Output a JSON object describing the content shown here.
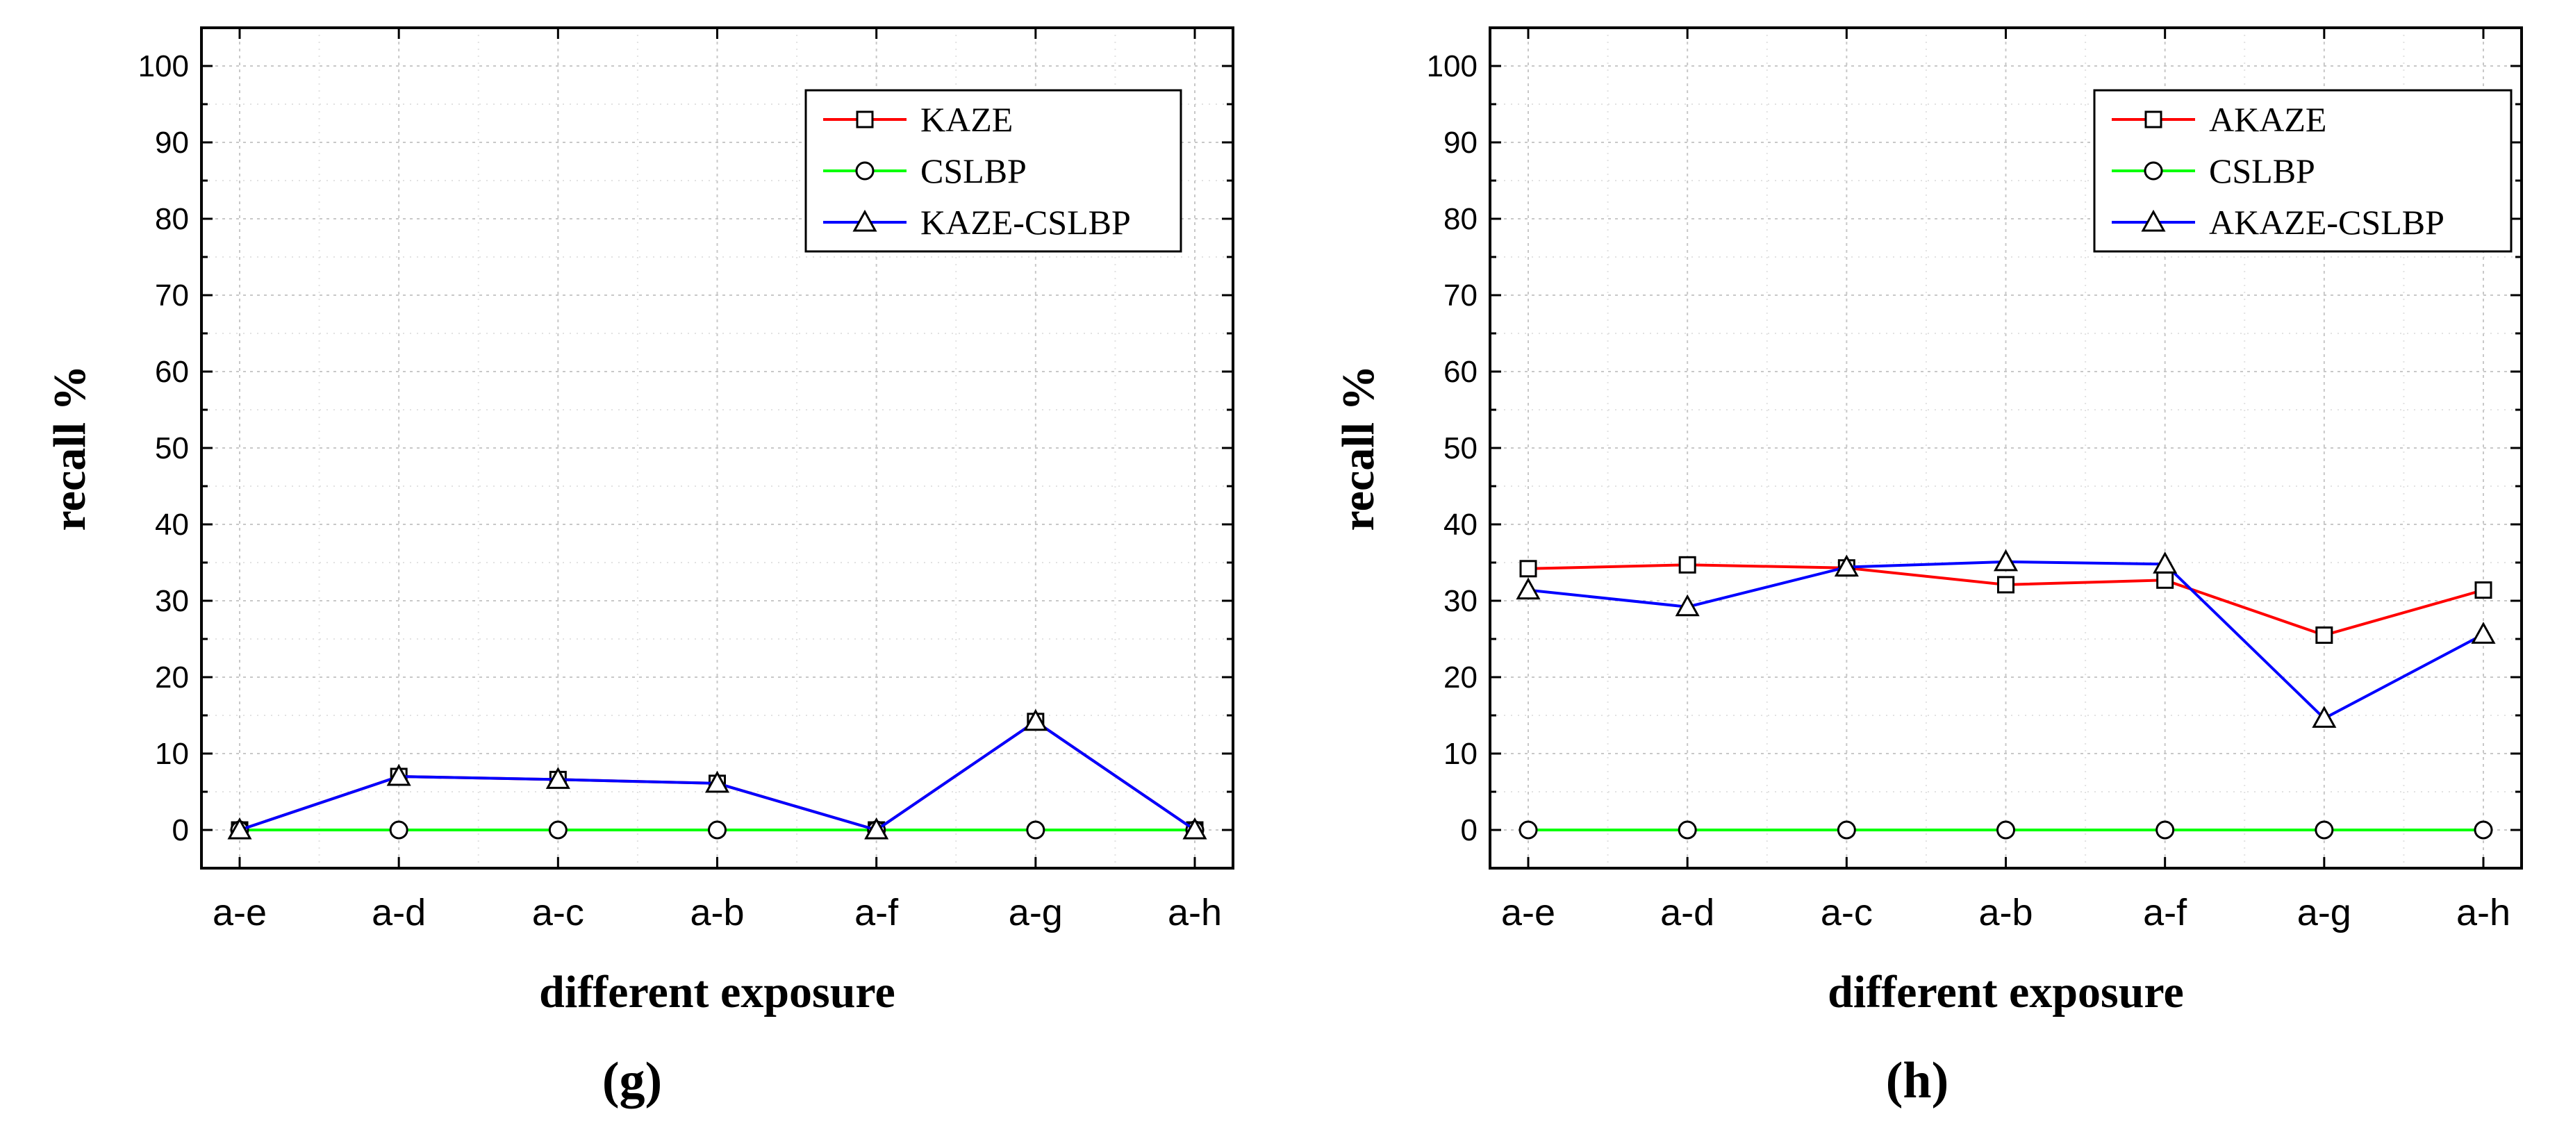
{
  "chart_data": [
    {
      "type": "line",
      "panel": "(g)",
      "xlabel": "different exposure",
      "ylabel": "recall %",
      "categories": [
        "a-e",
        "a-d",
        "a-c",
        "a-b",
        "a-f",
        "a-g",
        "a-h"
      ],
      "ylim": [
        -5,
        105
      ],
      "yticks": [
        0,
        10,
        20,
        30,
        40,
        50,
        60,
        70,
        80,
        90,
        100
      ],
      "grid": true,
      "legend_position": "top-right",
      "series": [
        {
          "name": "KAZE",
          "color": "#ff0000",
          "marker": "square",
          "values": [
            0,
            7,
            6.6,
            6.1,
            0,
            14.2,
            0
          ]
        },
        {
          "name": "CSLBP",
          "color": "#00ff00",
          "marker": "circle",
          "values": [
            0,
            0,
            0,
            0,
            0,
            0,
            0
          ]
        },
        {
          "name": "KAZE-CSLBP",
          "color": "#0000ff",
          "marker": "triangle",
          "values": [
            0,
            7,
            6.6,
            6.1,
            0,
            14.2,
            0
          ]
        }
      ]
    },
    {
      "type": "line",
      "panel": "(h)",
      "xlabel": "different exposure",
      "ylabel": "recall %",
      "categories": [
        "a-e",
        "a-d",
        "a-c",
        "a-b",
        "a-f",
        "a-g",
        "a-h"
      ],
      "ylim": [
        -5,
        105
      ],
      "yticks": [
        0,
        10,
        20,
        30,
        40,
        50,
        60,
        70,
        80,
        90,
        100
      ],
      "grid": true,
      "legend_position": "top-right",
      "series": [
        {
          "name": "AKAZE",
          "color": "#ff0000",
          "marker": "square",
          "values": [
            34.2,
            34.7,
            34.3,
            32.1,
            32.7,
            25.5,
            31.4
          ]
        },
        {
          "name": "CSLBP",
          "color": "#00ff00",
          "marker": "circle",
          "values": [
            0,
            0,
            0,
            0,
            0,
            0,
            0
          ]
        },
        {
          "name": "AKAZE-CSLBP",
          "color": "#0000ff",
          "marker": "triangle",
          "values": [
            31.4,
            29.2,
            34.4,
            35.1,
            34.8,
            14.6,
            25.6
          ]
        }
      ]
    }
  ]
}
